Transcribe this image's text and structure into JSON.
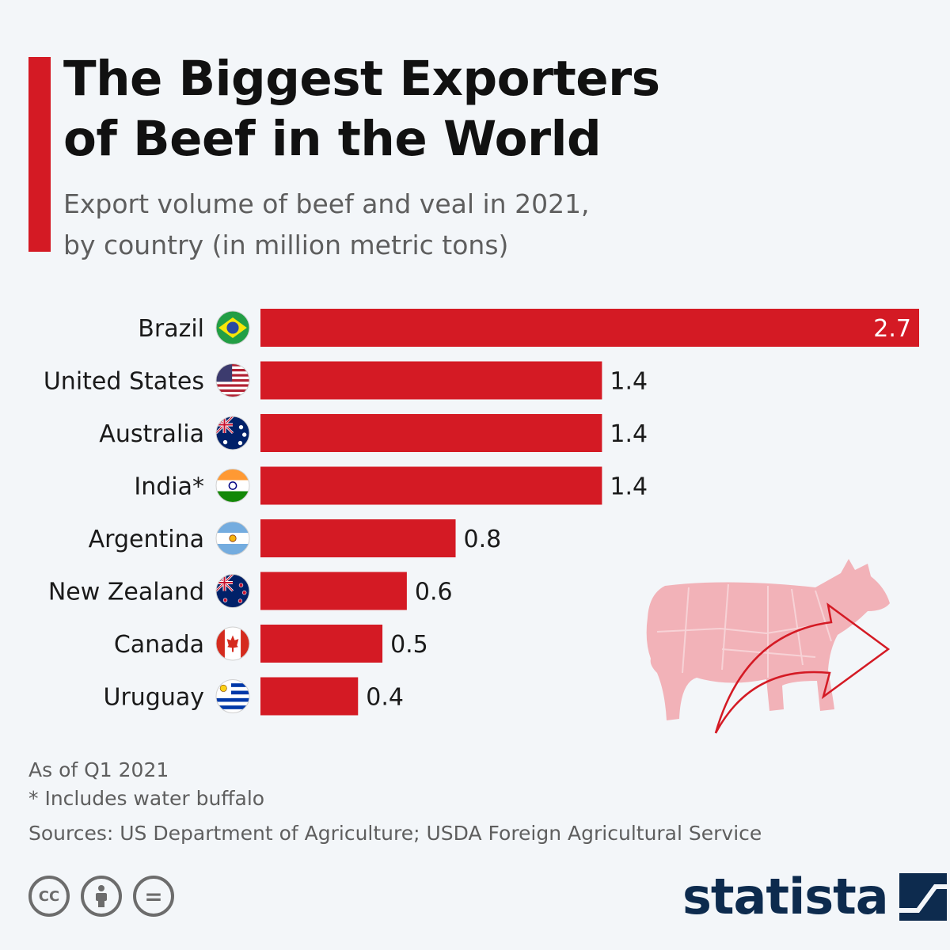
{
  "header": {
    "title": "The Biggest Exporters\nof Beef in the World",
    "subtitle": "Export volume of beef and veal in 2021,\nby country (in million metric tons)"
  },
  "chart_data": {
    "type": "bar",
    "orientation": "horizontal",
    "categories": [
      "Brazil",
      "United States",
      "Australia",
      "India*",
      "Argentina",
      "New Zealand",
      "Canada",
      "Uruguay"
    ],
    "values": [
      2.7,
      1.4,
      1.4,
      1.4,
      0.8,
      0.6,
      0.5,
      0.4
    ],
    "value_labels": [
      "2.7",
      "1.4",
      "1.4",
      "1.4",
      "0.8",
      "0.6",
      "0.5",
      "0.4"
    ],
    "flags": [
      "brazil-flag-icon",
      "usa-flag-icon",
      "australia-flag-icon",
      "india-flag-icon",
      "argentina-flag-icon",
      "new-zealand-flag-icon",
      "canada-flag-icon",
      "uruguay-flag-icon"
    ],
    "xlim": [
      0,
      2.7
    ],
    "grid": false,
    "bar_color": "#d41a24"
  },
  "footnotes": {
    "as_of": "As of Q1 2021",
    "note": "* Includes water buffalo",
    "sources": "Sources: US Department of Agriculture; USDA Foreign Agricultural Service"
  },
  "license_icons": [
    "cc-icon",
    "attribution-icon",
    "no-derivatives-icon"
  ],
  "license_text": {
    "cc": "CC",
    "nd": "="
  },
  "brand": {
    "name": "statista"
  },
  "colors": {
    "accent": "#d41a24",
    "brand": "#0d2b4e",
    "cow": "#f2b2b8"
  }
}
